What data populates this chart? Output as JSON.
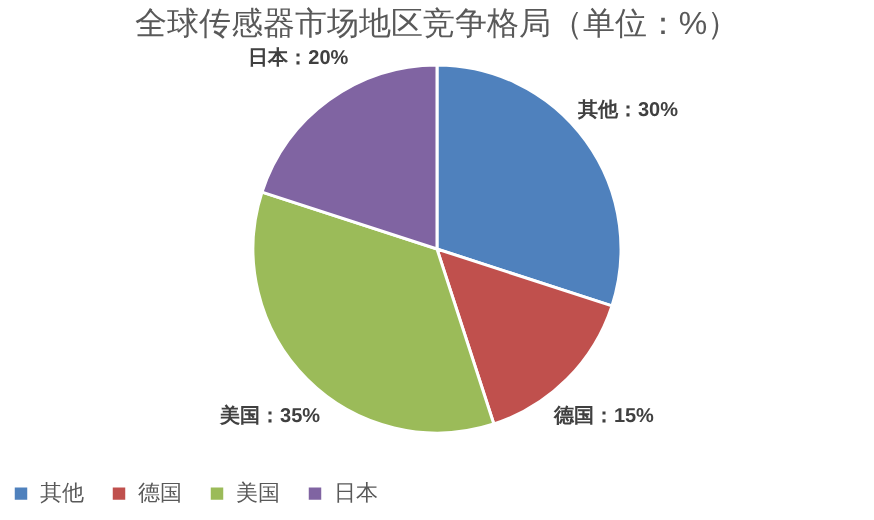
{
  "chart_data": {
    "type": "pie",
    "title": "全球传感器市场地区竞争格局（单位：%）",
    "categories": [
      "其他",
      "德国",
      "美国",
      "日本"
    ],
    "values": [
      30,
      15,
      35,
      20
    ],
    "colors": [
      "#4f81bd",
      "#c0504d",
      "#9bbb59",
      "#8064a2"
    ],
    "value_labels": [
      "其他：30%",
      "德国：15%",
      "美国：35%",
      "日本：20%"
    ],
    "legend": "bottom"
  }
}
